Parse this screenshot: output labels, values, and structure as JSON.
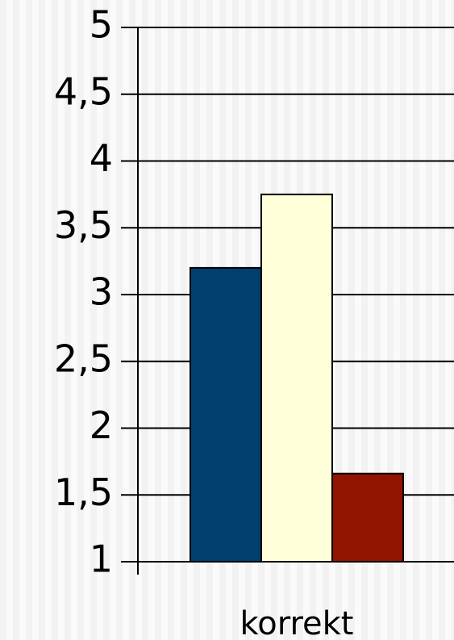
{
  "chart_data": {
    "type": "bar",
    "categories": [
      "korrekt"
    ],
    "series": [
      {
        "color": "#003f6e",
        "values": [
          3.2
        ]
      },
      {
        "color": "#ffffd9",
        "values": [
          3.75
        ]
      },
      {
        "color": "#911400",
        "values": [
          1.66
        ]
      }
    ],
    "ylim": [
      1,
      5
    ],
    "yticks": [
      1,
      {
        "value": 1.5,
        "label": "1,5"
      },
      2,
      {
        "value": 2.5,
        "label": "2,5"
      },
      3,
      {
        "value": 3.5,
        "label": "3,5"
      },
      4,
      {
        "value": 4.5,
        "label": "4,5"
      },
      5
    ],
    "grid": true
  }
}
